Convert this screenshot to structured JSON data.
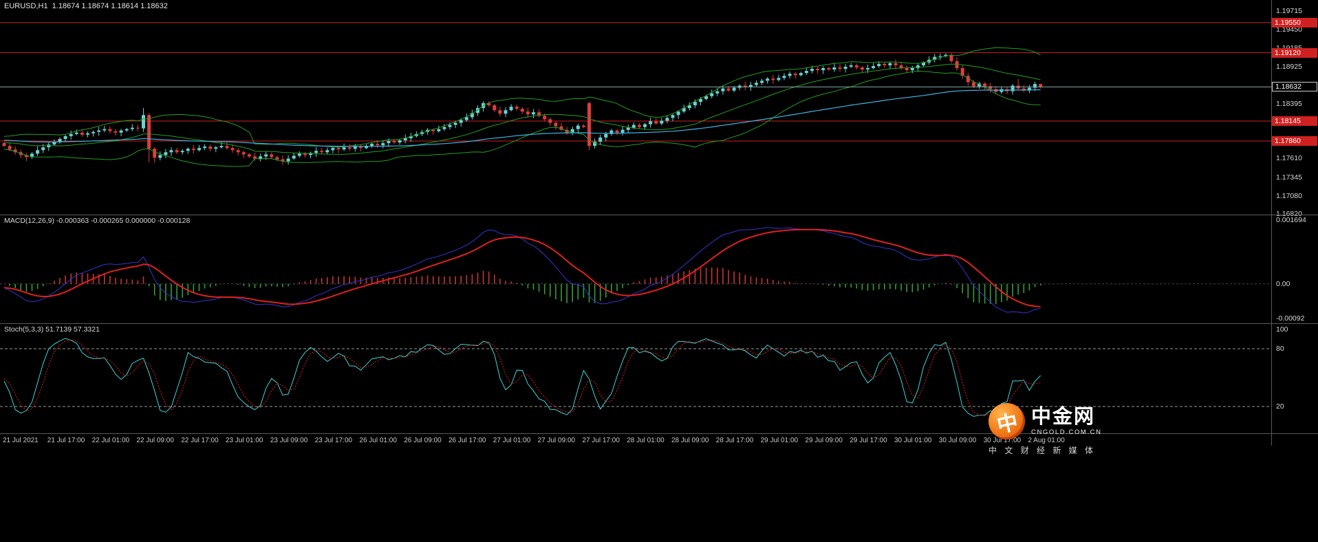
{
  "watermark": {
    "brand": "中金网",
    "domain": "CNGOLD.COM.CN",
    "tagline": "中 文 财 经 新 媒 体",
    "logo_glyph": "中",
    "accent_color": "#f07818"
  },
  "chart_data": [
    {
      "type": "candlestick",
      "symbol": "EURUSD",
      "timeframe": "H1",
      "title": "EURUSD,H1",
      "ohlc_display": "EURUSD,H1  1.18674 1.18674 1.18614 1.18632",
      "current_bar": {
        "open": "1.18674",
        "high": "1.18674",
        "low": "1.18614",
        "close": "1.18632"
      },
      "current_price": 1.18632,
      "current_price_label": "1.18632",
      "y_axis": {
        "max": 1.19715,
        "min": 1.1682,
        "labels": [
          "1.19715",
          "1.19450",
          "1.19185",
          "1.18925",
          "1.18660",
          "1.18395",
          "1.18135",
          "1.17870",
          "1.17610",
          "1.17345",
          "1.17080",
          "1.16820"
        ]
      },
      "x_labels": [
        "21 Jul 2021",
        "21 Jul 17:00",
        "22 Jul 01:00",
        "22 Jul 09:00",
        "22 Jul 17:00",
        "23 Jul 01:00",
        "23 Jul 09:00",
        "23 Jul 17:00",
        "26 Jul 01:00",
        "26 Jul 09:00",
        "26 Jul 17:00",
        "27 Jul 01:00",
        "27 Jul 09:00",
        "27 Jul 17:00",
        "28 Jul 01:00",
        "28 Jul 09:00",
        "28 Jul 17:00",
        "29 Jul 01:00",
        "29 Jul 09:00",
        "29 Jul 17:00",
        "30 Jul 01:00",
        "30 Jul 09:00",
        "30 Jul 17:00",
        "2 Aug 01:00"
      ],
      "bars_per_x_label": 8,
      "pre_history_closes": [
        1.1789,
        1.1783,
        1.1778,
        1.1784,
        1.179,
        1.1786,
        1.178,
        1.1775,
        1.1781,
        1.1787,
        1.1792,
        1.1788,
        1.1782,
        1.1777,
        1.1783,
        1.1789,
        1.1786,
        1.178,
        1.1784,
        1.1788
      ],
      "closes": [
        1.1779,
        1.1774,
        1.177,
        1.1766,
        1.1763,
        1.1768,
        1.1773,
        1.1777,
        1.1781,
        1.1785,
        1.1789,
        1.1793,
        1.1796,
        1.1798,
        1.1795,
        1.1797,
        1.1799,
        1.1801,
        1.1803,
        1.18,
        1.1798,
        1.1801,
        1.1803,
        1.1805,
        1.1804,
        1.1823,
        1.1775,
        1.1762,
        1.1766,
        1.177,
        1.1773,
        1.177,
        1.1772,
        1.1775,
        1.1773,
        1.1776,
        1.1778,
        1.1775,
        1.1777,
        1.1779,
        1.1776,
        1.1773,
        1.177,
        1.1767,
        1.1764,
        1.1761,
        1.1764,
        1.1767,
        1.1763,
        1.176,
        1.1757,
        1.1761,
        1.1765,
        1.1768,
        1.1766,
        1.1769,
        1.1772,
        1.177,
        1.1773,
        1.1776,
        1.1774,
        1.1777,
        1.1775,
        1.1778,
        1.1776,
        1.1779,
        1.1782,
        1.178,
        1.1783,
        1.1786,
        1.1784,
        1.1787,
        1.179,
        1.1793,
        1.1796,
        1.1799,
        1.1802,
        1.18,
        1.1803,
        1.1806,
        1.1809,
        1.1812,
        1.1816,
        1.182,
        1.1826,
        1.1833,
        1.184,
        1.1837,
        1.183,
        1.1825,
        1.183,
        1.1835,
        1.1832,
        1.1828,
        1.1824,
        1.1827,
        1.1822,
        1.1817,
        1.1812,
        1.1807,
        1.1802,
        1.1798,
        1.1803,
        1.1808,
        1.1806,
        1.1779,
        1.1785,
        1.1791,
        1.1796,
        1.1801,
        1.1798,
        1.1802,
        1.1805,
        1.1809,
        1.1806,
        1.181,
        1.1814,
        1.1811,
        1.1815,
        1.1819,
        1.1823,
        1.1828,
        1.1833,
        1.1837,
        1.1842,
        1.1846,
        1.185,
        1.1854,
        1.1857,
        1.1861,
        1.1858,
        1.1862,
        1.1865,
        1.1863,
        1.1866,
        1.1869,
        1.1872,
        1.1875,
        1.1873,
        1.1876,
        1.1879,
        1.1882,
        1.188,
        1.1883,
        1.1886,
        1.1889,
        1.1887,
        1.189,
        1.1888,
        1.1891,
        1.1889,
        1.1892,
        1.1894,
        1.1891,
        1.1888,
        1.189,
        1.1893,
        1.1896,
        1.1894,
        1.1897,
        1.1894,
        1.189,
        1.1887,
        1.189,
        1.1894,
        1.1898,
        1.1902,
        1.1906,
        1.1907,
        1.1909,
        1.19,
        1.189,
        1.1879,
        1.187,
        1.1864,
        1.1868,
        1.1864,
        1.186,
        1.1856,
        1.186,
        1.1857,
        1.1865,
        1.1861,
        1.1858,
        1.1862,
        1.18674,
        1.18632
      ],
      "open_overrides": {
        "105": 1.184
      },
      "wick_overrides": {
        "25": {
          "high": 1.1833
        },
        "26": {
          "low": 1.1756
        },
        "27": {
          "low": 1.1755
        },
        "50": {
          "low": 1.1752
        },
        "86": {
          "high": 1.1843
        },
        "105": {
          "high": 1.1842,
          "low": 1.1773
        },
        "169": {
          "high": 1.1911
        },
        "182": {
          "high": 1.18745
        },
        "186": {
          "high": 1.18676,
          "low": 1.18612
        }
      },
      "horizontal_lines": [
        {
          "price": 1.1955,
          "label": "1.19550",
          "color": "#d02020"
        },
        {
          "price": 1.1912,
          "label": "1.19120",
          "color": "#d02020"
        },
        {
          "price": 1.18145,
          "label": "1.18145",
          "color": "#d02020"
        },
        {
          "price": 1.1786,
          "label": "1.17860",
          "color": "#d02020"
        }
      ],
      "indicators": {
        "bollinger": {
          "period": 20,
          "deviations": 2,
          "color": "#22a022"
        },
        "slow_ma": {
          "period": 90,
          "color": "#3db4e6"
        }
      },
      "colors": {
        "up": "#66d4d4",
        "down": "#e03c3c",
        "price_line": "#88a8a8",
        "level_line": "#d02020"
      }
    },
    {
      "type": "macd",
      "name": "MACD",
      "label": "MACD(12,26,9) -0.000363 -0.000265 0.000000 -0.000128",
      "params": {
        "fast": 12,
        "slow": 26,
        "signal": 9
      },
      "current_values": [
        "-0.000363",
        "-0.000265",
        "0.000000",
        "-0.000128"
      ],
      "y_axis": {
        "max": 0.001694,
        "min": -0.00092,
        "labels": [
          "0.001694",
          "0.00",
          "-0.00092"
        ]
      },
      "colors": {
        "macd_line": "#3434d6",
        "signal_line": "#e02020",
        "hist_pos": "#cc3333",
        "hist_neg": "#33a033",
        "zero_line": "#454545"
      }
    },
    {
      "type": "stochastic",
      "name": "Stochastic Oscillator",
      "label": "Stoch(5,3,3) 51.7139 57.3321",
      "params": {
        "k": 5,
        "d": 3,
        "slowing": 3
      },
      "current_values": [
        "51.7139",
        "57.3321"
      ],
      "levels": [
        80,
        20
      ],
      "y_axis": {
        "max": 100,
        "min": 0,
        "labels": [
          "100",
          "80",
          "20"
        ]
      },
      "colors": {
        "k_line": "#3fd6d6",
        "d_line": "#e02020",
        "level_line": "#9a9a9a"
      }
    }
  ]
}
